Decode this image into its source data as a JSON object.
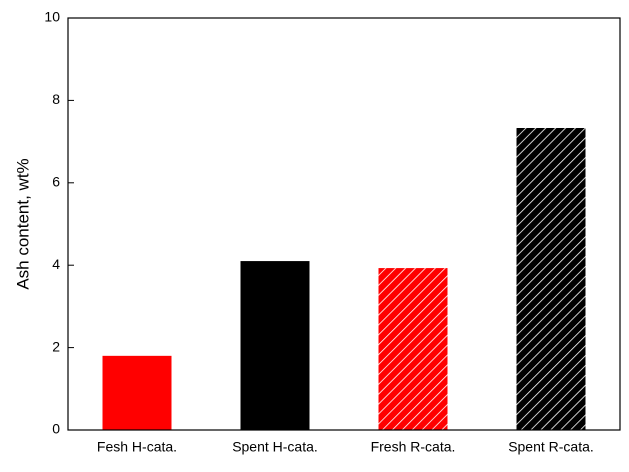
{
  "chart_data": {
    "type": "bar",
    "y_label": "Ash content, wt%",
    "categories": [
      "Fesh H-cata.",
      "Spent H-cata.",
      "Fresh R-cata.",
      "Spent R-cata."
    ],
    "values": [
      1.8,
      4.1,
      3.93,
      7.33
    ],
    "colors": [
      "#ff0000",
      "#000000",
      "#ff0000",
      "#000000"
    ],
    "hatch": [
      false,
      false,
      true,
      true
    ],
    "ylim": [
      0,
      10
    ],
    "yticks": [
      0,
      2,
      4,
      6,
      8,
      10
    ],
    "grid": false
  }
}
